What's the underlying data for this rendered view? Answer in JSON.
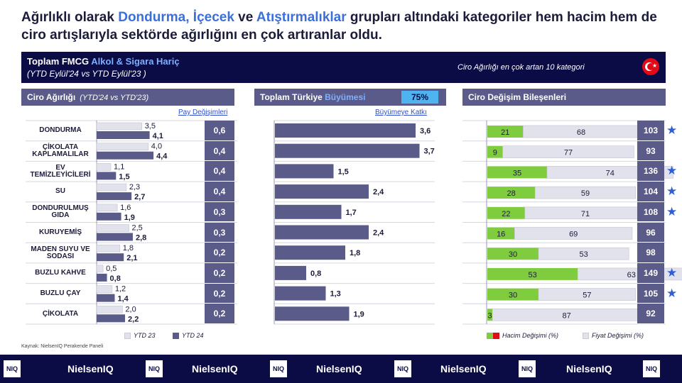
{
  "headline": {
    "p1": "Ağırlıklı olarak ",
    "h1": "Dondurma, İçecek",
    "p2": " ve ",
    "h2": "Atıştırmalıklar",
    "p3": " grupları altındaki kategoriler hem hacim hem de ciro artışlarıyla sektörde ağırlığını en çok artıranlar oldu."
  },
  "topbar": {
    "title_a": "Toplam FMCG ",
    "title_b": "Alkol & Sigara Hariç",
    "period": "(YTD Eylül'24 vs YTD Eylül'23 )",
    "note": "Ciro Ağırlığı en çok artan 10 kategori"
  },
  "sections": {
    "ciro_title": "Ciro Ağırlığı",
    "ciro_sub": "(YTD'24 vs YTD'23)",
    "growth_title_a": "Toplam Türkiye ",
    "growth_title_b": "Büyümesi",
    "growth_badge": "75%",
    "components_title": "Ciro Değişim Bileşenleri",
    "pay_link": "Pay Değişimleri",
    "katki_link": "Büyümeye Katkı"
  },
  "colors": {
    "ytd23": "#e2e2ec",
    "ytd24": "#5a5b88",
    "hacim": "#7fcc3f",
    "fiyat": "#e2e2ec",
    "navy": "#0b0b45",
    "star": "#2f5fd8"
  },
  "legend": {
    "ytd23": "YTD 23",
    "ytd24": "YTD 24",
    "hacim": "Hacim Değişimi (%)",
    "fiyat": "Fiyat Değişimi (%)"
  },
  "source": "Kaynak: NielsenIQ Perakende Paneli",
  "footer": {
    "box": "NIQ",
    "brand": "NielsenIQ"
  },
  "chart_data": [
    {
      "type": "bar",
      "title": "Ciro Ağırlığı",
      "categories": [
        "DONDURMA",
        "ÇİKOLATA KAPLAMALILAR",
        "EV TEMİZLEYİCİLERİ",
        "SU",
        "DONDURULMUŞ GIDA",
        "KURUYEMİŞ",
        "MADEN SUYU VE SODASI",
        "BUZLU KAHVE",
        "BUZLU ÇAY",
        "ÇİKOLATA"
      ],
      "series": [
        {
          "name": "YTD 23",
          "values": [
            "3,5",
            "4,0",
            "1,1",
            "2,3",
            "1,6",
            "2,5",
            "1,8",
            "0,5",
            "1,2",
            "2,0"
          ]
        },
        {
          "name": "YTD 24",
          "values": [
            "4,1",
            "4,4",
            "1,5",
            "2,7",
            "1,9",
            "2,8",
            "2,1",
            "0,8",
            "1,4",
            "2,2"
          ]
        }
      ],
      "pay_degisimleri": [
        "0,6",
        "0,4",
        "0,4",
        "0,4",
        "0,3",
        "0,3",
        "0,2",
        "0,2",
        "0,2",
        "0,2"
      ]
    },
    {
      "type": "bar",
      "title": "Toplam Türkiye Büyümesi",
      "categories": [
        "DONDURMA",
        "ÇİKOLATA KAPLAMALILAR",
        "EV TEMİZLEYİCİLERİ",
        "SU",
        "DONDURULMUŞ GIDA",
        "KURUYEMİŞ",
        "MADEN SUYU VE SODASI",
        "BUZLU KAHVE",
        "BUZLU ÇAY",
        "ÇİKOLATA"
      ],
      "series": [
        {
          "name": "Büyümeye Katkı",
          "values": [
            "3,6",
            "3,7",
            "1,5",
            "2,4",
            "1,7",
            "2,4",
            "1,8",
            "0,8",
            "1,3",
            "1,9"
          ]
        }
      ]
    },
    {
      "type": "bar",
      "title": "Ciro Değişim Bileşenleri",
      "categories": [
        "DONDURMA",
        "ÇİKOLATA KAPLAMALILAR",
        "EV TEMİZLEYİCİLERİ",
        "SU",
        "DONDURULMUŞ GIDA",
        "KURUYEMİŞ",
        "MADEN SUYU VE SODASI",
        "BUZLU KAHVE",
        "BUZLU ÇAY",
        "ÇİKOLATA"
      ],
      "series": [
        {
          "name": "Hacim Değişimi (%)",
          "values": [
            21,
            9,
            35,
            28,
            22,
            16,
            30,
            53,
            30,
            3
          ]
        },
        {
          "name": "Fiyat Değişimi (%)",
          "values": [
            68,
            77,
            74,
            59,
            71,
            69,
            53,
            63,
            57,
            87
          ]
        }
      ],
      "totals": [
        103,
        93,
        136,
        104,
        108,
        96,
        98,
        149,
        105,
        92
      ],
      "starred": [
        true,
        false,
        true,
        true,
        true,
        false,
        false,
        true,
        true,
        false
      ]
    }
  ]
}
